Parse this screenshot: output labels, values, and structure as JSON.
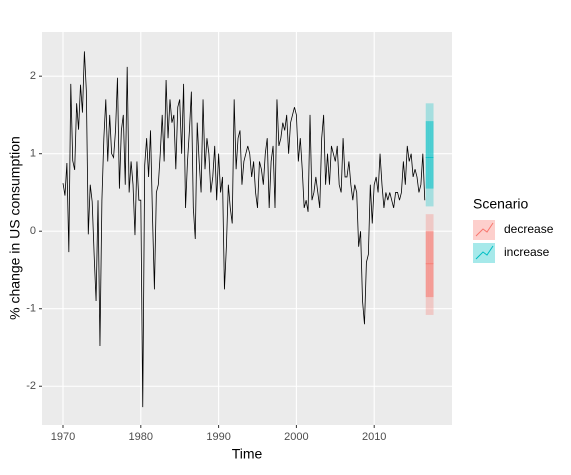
{
  "chart_data": {
    "type": "line",
    "xlabel": "Time",
    "ylabel": "% change in US consumption",
    "xlim": [
      1967.3,
      2020.0
    ],
    "ylim": [
      -2.5,
      2.57
    ],
    "xticks": [
      1970,
      1980,
      1990,
      2000,
      2010
    ],
    "yticks": [
      -2,
      -1,
      0,
      1,
      2
    ],
    "grid": true,
    "legend_title": "Scenario",
    "legend_position": "right",
    "series": [
      {
        "color": "#000000",
        "x": [
          1970,
          1970.25,
          1970.5,
          1970.75,
          1971,
          1971.25,
          1971.5,
          1971.75,
          1972,
          1972.25,
          1972.5,
          1972.75,
          1973,
          1973.25,
          1973.5,
          1973.75,
          1974,
          1974.25,
          1974.5,
          1974.75,
          1975,
          1975.25,
          1975.5,
          1975.75,
          1976,
          1976.25,
          1976.5,
          1976.75,
          1977,
          1977.25,
          1977.5,
          1977.75,
          1978,
          1978.25,
          1978.5,
          1978.75,
          1979,
          1979.25,
          1979.5,
          1979.75,
          1980,
          1980.25,
          1980.5,
          1980.75,
          1981,
          1981.25,
          1981.5,
          1981.75,
          1982,
          1982.25,
          1982.5,
          1982.75,
          1983,
          1983.25,
          1983.5,
          1983.75,
          1984,
          1984.25,
          1984.5,
          1984.75,
          1985,
          1985.25,
          1985.5,
          1985.75,
          1986,
          1986.25,
          1986.5,
          1986.75,
          1987,
          1987.25,
          1987.5,
          1987.75,
          1988,
          1988.25,
          1988.5,
          1988.75,
          1989,
          1989.25,
          1989.5,
          1989.75,
          1990,
          1990.25,
          1990.5,
          1990.75,
          1991,
          1991.25,
          1991.5,
          1991.75,
          1992,
          1992.25,
          1992.5,
          1992.75,
          1993,
          1993.25,
          1993.5,
          1993.75,
          1994,
          1994.25,
          1994.5,
          1994.75,
          1995,
          1995.25,
          1995.5,
          1995.75,
          1996,
          1996.25,
          1996.5,
          1996.75,
          1997,
          1997.25,
          1997.5,
          1997.75,
          1998,
          1998.25,
          1998.5,
          1998.75,
          1999,
          1999.25,
          1999.5,
          1999.75,
          2000,
          2000.25,
          2000.5,
          2000.75,
          2001,
          2001.25,
          2001.5,
          2001.75,
          2002,
          2002.25,
          2002.5,
          2002.75,
          2003,
          2003.25,
          2003.5,
          2003.75,
          2004,
          2004.25,
          2004.5,
          2004.75,
          2005,
          2005.25,
          2005.5,
          2005.75,
          2006,
          2006.25,
          2006.5,
          2006.75,
          2007,
          2007.25,
          2007.5,
          2007.75,
          2008,
          2008.25,
          2008.5,
          2008.75,
          2009,
          2009.25,
          2009.5,
          2009.75,
          2010,
          2010.25,
          2010.5,
          2010.75,
          2011,
          2011.25,
          2011.5,
          2011.75,
          2012,
          2012.25,
          2012.5,
          2012.75,
          2013,
          2013.25,
          2013.5,
          2013.75,
          2014,
          2014.25,
          2014.5,
          2014.75,
          2015,
          2015.25,
          2015.5,
          2015.75,
          2016,
          2016.25,
          2016.5
        ],
        "values": [
          0.62,
          0.46,
          0.88,
          -0.27,
          1.9,
          0.91,
          0.79,
          1.65,
          1.31,
          1.89,
          1.53,
          2.32,
          1.81,
          -0.04,
          0.6,
          0.38,
          -0.3,
          -0.9,
          0.4,
          -1.48,
          0.4,
          1.2,
          1.7,
          0.9,
          1.5,
          1.0,
          0.95,
          1.3,
          1.98,
          0.55,
          1.3,
          1.5,
          0.6,
          2.12,
          0.5,
          0.9,
          0.6,
          -0.05,
          0.9,
          0.4,
          0.4,
          -2.27,
          0.85,
          1.2,
          0.7,
          1.3,
          0.2,
          -0.75,
          0.5,
          0.6,
          1.0,
          1.5,
          0.9,
          1.95,
          1.2,
          1.7,
          1.4,
          1.5,
          0.8,
          1.6,
          1.7,
          1.0,
          1.9,
          0.3,
          0.9,
          1.3,
          1.8,
          0.3,
          -0.1,
          1.4,
          0.9,
          0.5,
          1.7,
          0.8,
          1.2,
          1.0,
          0.5,
          0.7,
          1.1,
          0.4,
          1.0,
          0.5,
          0.7,
          -0.75,
          -0.2,
          0.6,
          0.3,
          0.1,
          1.7,
          0.8,
          1.2,
          1.3,
          0.6,
          0.9,
          1.0,
          1.1,
          1.0,
          0.7,
          0.9,
          0.5,
          0.3,
          0.9,
          0.8,
          0.6,
          1.0,
          1.2,
          0.3,
          0.9,
          1.1,
          0.3,
          1.7,
          1.1,
          1.2,
          1.4,
          1.3,
          1.5,
          1.0,
          1.4,
          1.5,
          1.6,
          1.5,
          0.9,
          1.2,
          0.8,
          0.3,
          0.4,
          0.25,
          1.5,
          0.4,
          0.5,
          0.7,
          0.5,
          0.3,
          1.2,
          1.5,
          0.6,
          1.0,
          0.6,
          1.1,
          1.0,
          0.9,
          1.1,
          0.6,
          0.5,
          1.2,
          0.7,
          0.7,
          0.9,
          0.6,
          0.4,
          0.6,
          0.5,
          -0.2,
          0.0,
          -0.9,
          -1.2,
          -0.4,
          -0.3,
          0.6,
          0.1,
          0.6,
          0.7,
          0.5,
          1.0,
          0.6,
          0.3,
          0.5,
          0.4,
          0.5,
          0.4,
          0.3,
          0.5,
          0.5,
          0.4,
          0.5,
          0.9,
          0.6,
          1.1,
          0.9,
          1.0,
          0.7,
          0.8,
          0.7,
          0.5,
          0.6,
          1.0,
          0.4
        ]
      }
    ],
    "forecasts": [
      {
        "name": "decrease",
        "color": "#F8766D",
        "x": [
          2016.75,
          2017,
          2017.25,
          2017.5
        ],
        "mean": [
          -0.42,
          -0.42,
          -0.42,
          -0.42
        ],
        "lower80": [
          -0.85,
          -0.85,
          -0.85,
          -0.85
        ],
        "upper80": [
          0.0,
          0.0,
          0.0,
          0.0
        ],
        "lower95": [
          -1.08,
          -1.08,
          -1.08,
          -1.08
        ],
        "upper95": [
          0.22,
          0.22,
          0.22,
          0.22
        ]
      },
      {
        "name": "increase",
        "color": "#00BFC4",
        "x": [
          2016.75,
          2017,
          2017.25,
          2017.5
        ],
        "mean": [
          0.95,
          0.95,
          0.95,
          0.95
        ],
        "lower80": [
          0.55,
          0.55,
          0.55,
          0.55
        ],
        "upper80": [
          1.42,
          1.42,
          1.42,
          1.42
        ],
        "lower95": [
          0.32,
          0.32,
          0.32,
          0.32
        ],
        "upper95": [
          1.65,
          1.65,
          1.65,
          1.65
        ]
      }
    ]
  }
}
